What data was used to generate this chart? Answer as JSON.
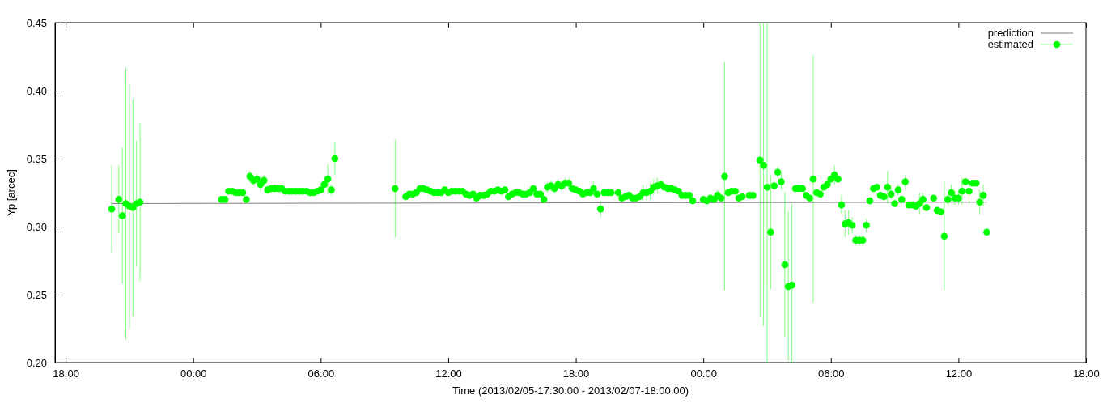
{
  "chart_data": {
    "type": "scatter",
    "xlabel": "Time (2013/02/05-17:30:00 - 2013/02/07-18:00:00)",
    "ylabel": "Yp [arcec]",
    "xlim": [
      "2013-02-05T17:30",
      "2013-02-07T18:00"
    ],
    "xticks": [
      {
        "value": "2013-02-05T18:00",
        "label": "18:00"
      },
      {
        "value": "2013-02-06T00:00",
        "label": "00:00"
      },
      {
        "value": "2013-02-06T06:00",
        "label": "06:00"
      },
      {
        "value": "2013-02-06T12:00",
        "label": "12:00"
      },
      {
        "value": "2013-02-06T18:00",
        "label": "18:00"
      },
      {
        "value": "2013-02-07T00:00",
        "label": "00:00"
      },
      {
        "value": "2013-02-07T06:00",
        "label": "06:00"
      },
      {
        "value": "2013-02-07T12:00",
        "label": "12:00"
      },
      {
        "value": "2013-02-07T18:00",
        "label": "18:00"
      }
    ],
    "ylim": [
      0.2,
      0.45
    ],
    "yticks": [
      {
        "value": 0.2,
        "label": "0.20"
      },
      {
        "value": 0.25,
        "label": "0.25"
      },
      {
        "value": 0.3,
        "label": "0.30"
      },
      {
        "value": 0.35,
        "label": "0.35"
      },
      {
        "value": 0.4,
        "label": "0.40"
      },
      {
        "value": 0.45,
        "label": "0.45"
      }
    ],
    "legend": "top right",
    "series": [
      {
        "name": "prediction",
        "type": "line",
        "color": "#808080",
        "x": [
          "2013-02-05T20:10",
          "2013-02-07T13:20"
        ],
        "values": [
          0.317,
          0.318
        ]
      },
      {
        "name": "estimated",
        "color": "#00ff00",
        "marker": "circle",
        "x": [
          "2013-02-05T20:10",
          "2013-02-05T20:30",
          "2013-02-05T20:40",
          "2013-02-05T20:50",
          "2013-02-05T21:00",
          "2013-02-05T21:10",
          "2013-02-05T21:20",
          "2013-02-05T21:30",
          "2013-02-06T01:20",
          "2013-02-06T01:30",
          "2013-02-06T01:40",
          "2013-02-06T01:50",
          "2013-02-06T02:00",
          "2013-02-06T02:10",
          "2013-02-06T02:20",
          "2013-02-06T02:30",
          "2013-02-06T02:40",
          "2013-02-06T02:50",
          "2013-02-06T03:00",
          "2013-02-06T03:10",
          "2013-02-06T03:20",
          "2013-02-06T03:30",
          "2013-02-06T03:40",
          "2013-02-06T03:50",
          "2013-02-06T04:00",
          "2013-02-06T04:10",
          "2013-02-06T04:20",
          "2013-02-06T04:30",
          "2013-02-06T04:40",
          "2013-02-06T04:50",
          "2013-02-06T05:00",
          "2013-02-06T05:10",
          "2013-02-06T05:20",
          "2013-02-06T05:30",
          "2013-02-06T05:40",
          "2013-02-06T05:50",
          "2013-02-06T06:00",
          "2013-02-06T06:10",
          "2013-02-06T06:20",
          "2013-02-06T06:30",
          "2013-02-06T06:40",
          "2013-02-06T09:30",
          "2013-02-06T10:00",
          "2013-02-06T10:10",
          "2013-02-06T10:20",
          "2013-02-06T10:30",
          "2013-02-06T10:40",
          "2013-02-06T10:50",
          "2013-02-06T11:00",
          "2013-02-06T11:10",
          "2013-02-06T11:20",
          "2013-02-06T11:30",
          "2013-02-06T11:40",
          "2013-02-06T11:50",
          "2013-02-06T12:00",
          "2013-02-06T12:10",
          "2013-02-06T12:20",
          "2013-02-06T12:30",
          "2013-02-06T12:40",
          "2013-02-06T12:50",
          "2013-02-06T13:00",
          "2013-02-06T13:10",
          "2013-02-06T13:20",
          "2013-02-06T13:30",
          "2013-02-06T13:40",
          "2013-02-06T13:50",
          "2013-02-06T14:00",
          "2013-02-06T14:10",
          "2013-02-06T14:20",
          "2013-02-06T14:30",
          "2013-02-06T14:40",
          "2013-02-06T14:50",
          "2013-02-06T15:00",
          "2013-02-06T15:10",
          "2013-02-06T15:20",
          "2013-02-06T15:30",
          "2013-02-06T15:40",
          "2013-02-06T15:50",
          "2013-02-06T16:00",
          "2013-02-06T16:10",
          "2013-02-06T16:20",
          "2013-02-06T16:30",
          "2013-02-06T16:40",
          "2013-02-06T16:50",
          "2013-02-06T17:00",
          "2013-02-06T17:10",
          "2013-02-06T17:20",
          "2013-02-06T17:30",
          "2013-02-06T17:40",
          "2013-02-06T17:50",
          "2013-02-06T18:00",
          "2013-02-06T18:10",
          "2013-02-06T18:20",
          "2013-02-06T18:30",
          "2013-02-06T18:40",
          "2013-02-06T18:50",
          "2013-02-06T19:00",
          "2013-02-06T19:10",
          "2013-02-06T19:20",
          "2013-02-06T19:30",
          "2013-02-06T19:40",
          "2013-02-06T20:00",
          "2013-02-06T20:10",
          "2013-02-06T20:20",
          "2013-02-06T20:30",
          "2013-02-06T20:40",
          "2013-02-06T20:50",
          "2013-02-06T21:00",
          "2013-02-06T21:10",
          "2013-02-06T21:20",
          "2013-02-06T21:30",
          "2013-02-06T21:40",
          "2013-02-06T21:50",
          "2013-02-06T22:00",
          "2013-02-06T22:10",
          "2013-02-06T22:20",
          "2013-02-06T22:30",
          "2013-02-06T22:40",
          "2013-02-06T22:50",
          "2013-02-06T23:00",
          "2013-02-06T23:10",
          "2013-02-06T23:20",
          "2013-02-06T23:30",
          "2013-02-07T00:00",
          "2013-02-07T00:10",
          "2013-02-07T00:20",
          "2013-02-07T00:30",
          "2013-02-07T00:40",
          "2013-02-07T00:50",
          "2013-02-07T01:00",
          "2013-02-07T01:10",
          "2013-02-07T01:20",
          "2013-02-07T01:30",
          "2013-02-07T01:40",
          "2013-02-07T01:50",
          "2013-02-07T02:10",
          "2013-02-07T02:20",
          "2013-02-07T02:40",
          "2013-02-07T02:50",
          "2013-02-07T03:00",
          "2013-02-07T03:10",
          "2013-02-07T03:20",
          "2013-02-07T03:30",
          "2013-02-07T03:40",
          "2013-02-07T03:50",
          "2013-02-07T04:00",
          "2013-02-07T04:10",
          "2013-02-07T04:20",
          "2013-02-07T04:30",
          "2013-02-07T04:40",
          "2013-02-07T04:50",
          "2013-02-07T05:00",
          "2013-02-07T05:10",
          "2013-02-07T05:20",
          "2013-02-07T05:30",
          "2013-02-07T05:40",
          "2013-02-07T05:50",
          "2013-02-07T06:00",
          "2013-02-07T06:10",
          "2013-02-07T06:20",
          "2013-02-07T06:30",
          "2013-02-07T06:40",
          "2013-02-07T06:50",
          "2013-02-07T07:00",
          "2013-02-07T07:10",
          "2013-02-07T07:20",
          "2013-02-07T07:30",
          "2013-02-07T07:40",
          "2013-02-07T07:50",
          "2013-02-07T08:00",
          "2013-02-07T08:10",
          "2013-02-07T08:20",
          "2013-02-07T08:30",
          "2013-02-07T08:40",
          "2013-02-07T08:50",
          "2013-02-07T09:00",
          "2013-02-07T09:10",
          "2013-02-07T09:20",
          "2013-02-07T09:30",
          "2013-02-07T09:40",
          "2013-02-07T09:50",
          "2013-02-07T10:00",
          "2013-02-07T10:10",
          "2013-02-07T10:20",
          "2013-02-07T10:30",
          "2013-02-07T10:50",
          "2013-02-07T11:00",
          "2013-02-07T11:10",
          "2013-02-07T11:20",
          "2013-02-07T11:30",
          "2013-02-07T11:40",
          "2013-02-07T11:50",
          "2013-02-07T12:00",
          "2013-02-07T12:10",
          "2013-02-07T12:20",
          "2013-02-07T12:30",
          "2013-02-07T12:40",
          "2013-02-07T12:50",
          "2013-02-07T13:00",
          "2013-02-07T13:10",
          "2013-02-07T13:20"
        ],
        "values": [
          0.313,
          0.32,
          0.308,
          0.317,
          0.315,
          0.314,
          0.317,
          0.318,
          0.32,
          0.32,
          0.326,
          0.326,
          0.325,
          0.325,
          0.325,
          0.32,
          0.337,
          0.334,
          0.335,
          0.331,
          0.334,
          0.327,
          0.328,
          0.328,
          0.328,
          0.328,
          0.326,
          0.326,
          0.326,
          0.326,
          0.326,
          0.326,
          0.326,
          0.325,
          0.325,
          0.326,
          0.327,
          0.331,
          0.335,
          0.327,
          0.35,
          0.328,
          0.322,
          0.324,
          0.324,
          0.325,
          0.328,
          0.328,
          0.327,
          0.326,
          0.325,
          0.325,
          0.325,
          0.327,
          0.325,
          0.326,
          0.326,
          0.326,
          0.326,
          0.324,
          0.323,
          0.324,
          0.321,
          0.323,
          0.323,
          0.324,
          0.326,
          0.326,
          0.327,
          0.326,
          0.327,
          0.322,
          0.324,
          0.325,
          0.325,
          0.324,
          0.324,
          0.325,
          0.328,
          0.324,
          0.324,
          0.32,
          0.329,
          0.33,
          0.328,
          0.331,
          0.33,
          0.332,
          0.332,
          0.328,
          0.327,
          0.326,
          0.324,
          0.325,
          0.325,
          0.328,
          0.324,
          0.313,
          0.325,
          0.325,
          0.325,
          0.325,
          0.321,
          0.322,
          0.323,
          0.321,
          0.321,
          0.322,
          0.325,
          0.325,
          0.326,
          0.329,
          0.33,
          0.331,
          0.329,
          0.328,
          0.328,
          0.327,
          0.326,
          0.323,
          0.323,
          0.323,
          0.319,
          0.32,
          0.319,
          0.321,
          0.32,
          0.323,
          0.321,
          0.337,
          0.325,
          0.326,
          0.326,
          0.321,
          0.322,
          0.323,
          0.323,
          0.349,
          0.345,
          0.329,
          0.296,
          0.33,
          0.34,
          0.333,
          0.272,
          0.256,
          0.257,
          0.328,
          0.328,
          0.328,
          0.323,
          0.321,
          0.335,
          0.325,
          0.324,
          0.329,
          0.331,
          0.335,
          0.338,
          0.335,
          0.316,
          0.302,
          0.303,
          0.301,
          0.29,
          0.29,
          0.29,
          0.301,
          0.319,
          0.328,
          0.329,
          0.323,
          0.322,
          0.329,
          0.324,
          0.317,
          0.327,
          0.32,
          0.333,
          0.316,
          0.316,
          0.315,
          0.317,
          0.32,
          0.314,
          0.321,
          0.312,
          0.311,
          0.293,
          0.32,
          0.325,
          0.321,
          0.321,
          0.326,
          0.333,
          0.326,
          0.332,
          0.332,
          0.318,
          0.323,
          0.296
        ],
        "errors": [
          0.032,
          0.025,
          0.05,
          0.1,
          0.09,
          0.08,
          0.046,
          0.058,
          null,
          null,
          null,
          null,
          null,
          null,
          null,
          null,
          0.004,
          0.004,
          0.004,
          0.005,
          0.004,
          0.003,
          0.003,
          0.003,
          0.003,
          null,
          null,
          null,
          null,
          null,
          null,
          null,
          null,
          null,
          null,
          null,
          null,
          0.003,
          0.011,
          0.004,
          0.012,
          0.036,
          null,
          null,
          null,
          null,
          null,
          null,
          null,
          null,
          null,
          null,
          null,
          null,
          null,
          null,
          null,
          null,
          null,
          null,
          null,
          null,
          null,
          null,
          null,
          null,
          null,
          null,
          null,
          null,
          null,
          null,
          null,
          null,
          null,
          null,
          null,
          null,
          null,
          null,
          null,
          null,
          0.004,
          0.004,
          0.004,
          0.004,
          0.004,
          0.004,
          0.004,
          null,
          null,
          null,
          null,
          null,
          null,
          0.005,
          null,
          0.006,
          null,
          null,
          null,
          null,
          null,
          null,
          null,
          null,
          null,
          null,
          0.006,
          0.006,
          0.006,
          0.006,
          0.006,
          null,
          null,
          null,
          null,
          null,
          null,
          null,
          null,
          null,
          null,
          null,
          null,
          null,
          null,
          0.004,
          null,
          0.084,
          null,
          null,
          null,
          null,
          null,
          null,
          null,
          [
            0.233,
            0.45
          ],
          [
            0.227,
            0.45
          ],
          [
            0.2,
            0.45
          ],
          0.042,
          null,
          0.004,
          0.006,
          0.053,
          0.055,
          [
            0.2,
            0.317
          ],
          null,
          null,
          null,
          null,
          null,
          0.091,
          null,
          null,
          null,
          null,
          null,
          0.007,
          null,
          0.007,
          0.01,
          0.009,
          0.006,
          0.004,
          0.004,
          0.004,
          0.005,
          null,
          null,
          null,
          null,
          null,
          0.012,
          0.004,
          null,
          0.004,
          null,
          0.005,
          null,
          null,
          null,
          0.008,
          0.005,
          null,
          null,
          null,
          null,
          0.04,
          0.004,
          0.006,
          0.005,
          0.005,
          0.01,
          null,
          0.009,
          null,
          null,
          0.009,
          0.008,
          null
        ]
      }
    ]
  }
}
